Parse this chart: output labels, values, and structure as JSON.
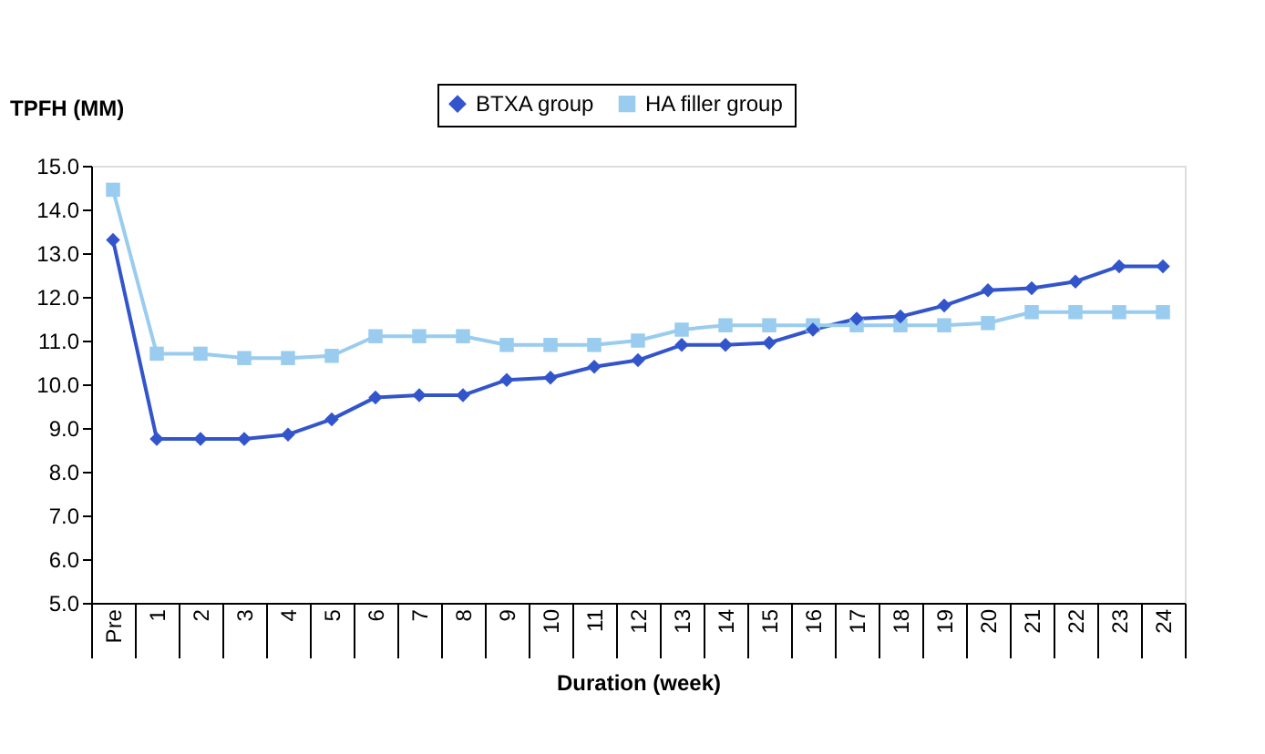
{
  "chart_data": {
    "type": "line",
    "ylabel": "TPFH (MM)",
    "xlabel": "Duration (week)",
    "categories": [
      "Pre",
      "1",
      "2",
      "3",
      "4",
      "5",
      "6",
      "7",
      "8",
      "9",
      "10",
      "11",
      "12",
      "13",
      "14",
      "15",
      "16",
      "17",
      "18",
      "19",
      "20",
      "21",
      "22",
      "23",
      "24"
    ],
    "series": [
      {
        "name": "BTXA group",
        "color": "#3355cc",
        "marker": "diamond",
        "values": [
          13.3,
          8.75,
          8.75,
          8.75,
          8.85,
          9.2,
          9.7,
          9.75,
          9.75,
          10.1,
          10.15,
          10.4,
          10.55,
          10.9,
          10.9,
          10.95,
          11.25,
          11.5,
          11.55,
          11.8,
          12.15,
          12.2,
          12.35,
          12.7,
          12.7
        ]
      },
      {
        "name": "HA filler group",
        "color": "#99ccee",
        "marker": "square",
        "values": [
          14.45,
          10.7,
          10.7,
          10.6,
          10.6,
          10.65,
          11.1,
          11.1,
          11.1,
          10.9,
          10.9,
          10.9,
          11.0,
          11.25,
          11.35,
          11.35,
          11.35,
          11.35,
          11.35,
          11.35,
          11.4,
          11.65,
          11.65,
          11.65,
          11.65
        ]
      }
    ],
    "ylim": [
      5,
      15
    ],
    "yticks": [
      {
        "value": 5,
        "label": "5.0"
      },
      {
        "value": 6,
        "label": "6.0"
      },
      {
        "value": 7,
        "label": "7.0"
      },
      {
        "value": 8,
        "label": "8.0"
      },
      {
        "value": 9,
        "label": "9.0"
      },
      {
        "value": 10,
        "label": "10.0"
      },
      {
        "value": 11,
        "label": "11.0"
      },
      {
        "value": 12,
        "label": "12.0"
      },
      {
        "value": 13,
        "label": "13.0"
      },
      {
        "value": 14,
        "label": "14.0"
      },
      {
        "value": 15,
        "label": "15.0"
      }
    ],
    "grid": false,
    "legend": "top",
    "line_style": "solid"
  }
}
